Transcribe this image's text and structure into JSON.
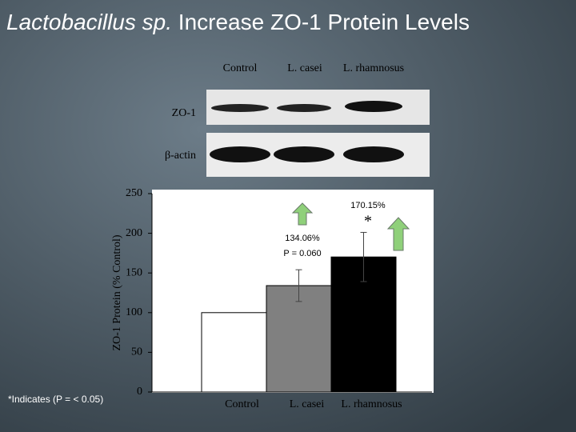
{
  "slide": {
    "title_italic": "Lactobacillus sp.",
    "title": "Increase ZO-1 Protein Levels",
    "footnote": "*Indicates (P = < 0.05)"
  },
  "blot": {
    "lanes": [
      "Control",
      "L. casei",
      "L. rhamnosus"
    ],
    "rows": [
      "ZO-1",
      "β-actin"
    ]
  },
  "chart_data": {
    "type": "bar",
    "ylabel": "ZO-1 Protein (% Control)",
    "categories": [
      "Control",
      "L. casei",
      "L. rhamnosus"
    ],
    "values": [
      100,
      134.06,
      170.15
    ],
    "value_labels": [
      null,
      "134.06%",
      "170.15%"
    ],
    "errors": [
      null,
      20,
      31
    ],
    "colors": [
      "#ffffff",
      "#808080",
      "#000000"
    ],
    "ylim": [
      0,
      250
    ],
    "yticks": [
      0,
      50,
      100,
      150,
      200,
      250
    ],
    "annotations": [
      "P = 0.060",
      "*"
    ]
  }
}
